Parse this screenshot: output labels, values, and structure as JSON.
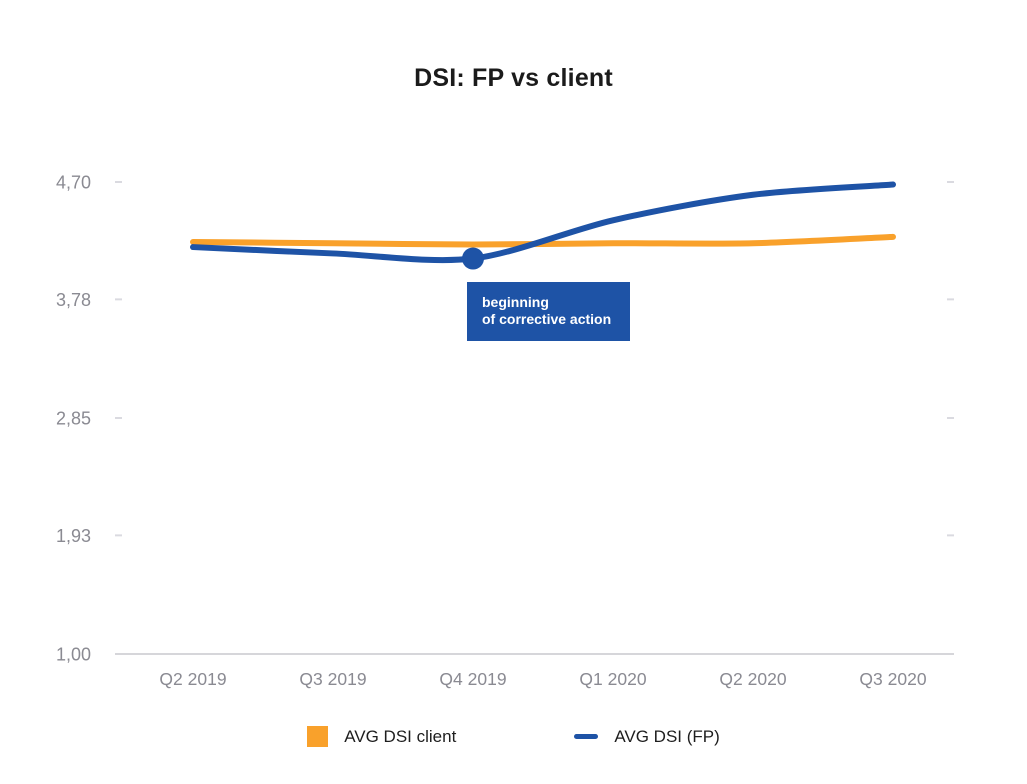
{
  "chart_data": {
    "type": "line",
    "title": "DSI: FP vs client",
    "categories": [
      "Q2 2019",
      "Q3 2019",
      "Q4 2019",
      "Q1 2020",
      "Q2 2020",
      "Q3 2020"
    ],
    "series": [
      {
        "name": "AVG DSI client",
        "color": "#F9A12B",
        "swatch": "square",
        "values": [
          4.23,
          4.22,
          4.21,
          4.22,
          4.22,
          4.27
        ]
      },
      {
        "name": "AVG DSI (FP)",
        "color": "#1E53A6",
        "swatch": "dash",
        "values": [
          4.19,
          4.14,
          4.1,
          4.4,
          4.6,
          4.68
        ],
        "marker_category": "Q4 2019"
      }
    ],
    "y_ticks": {
      "labels": [
        "4,70",
        "3,78",
        "2,85",
        "1,93",
        "1,00"
      ],
      "values": [
        4.7,
        3.78,
        2.85,
        1.93,
        1.0
      ]
    },
    "ylim": [
      1.0,
      4.7
    ],
    "xlabel": "",
    "ylabel": "",
    "grid": "edge ticks only, solid baseline at 1,00",
    "legend_position": "bottom",
    "annotation": {
      "lines": [
        "beginning",
        "of corrective action"
      ],
      "target_category": "Q4 2019",
      "target_series": "AVG DSI (FP)",
      "background": "#1E53A6",
      "text_color": "#FFFFFF"
    },
    "colors": {
      "axis_line": "#C9C9CE",
      "edge_tick": "#DADAE0",
      "tick_label": "#8A8A92",
      "title_text": "#1B1B1B",
      "legend_text": "#1E1E1E"
    }
  }
}
